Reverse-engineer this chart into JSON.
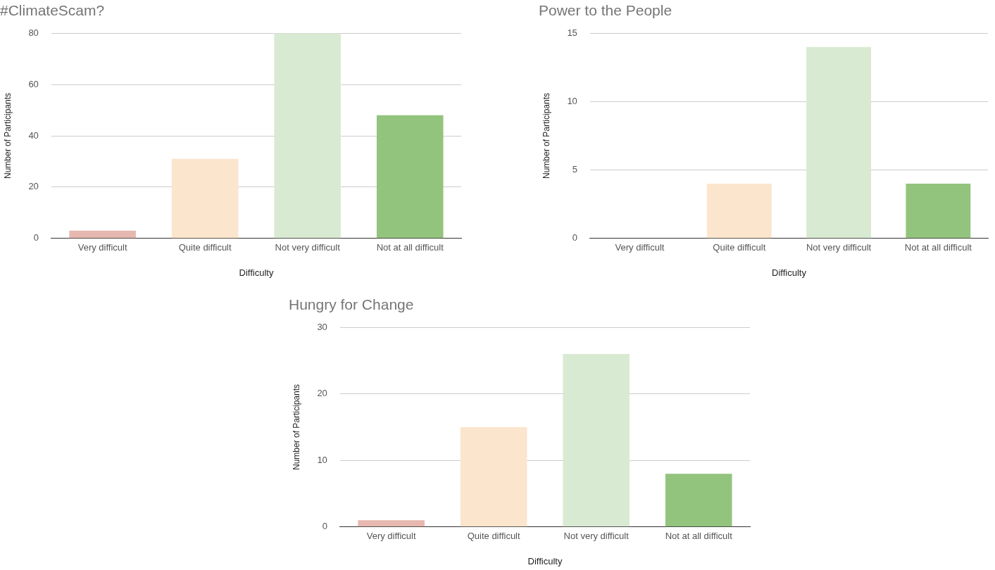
{
  "chart_data": [
    {
      "type": "bar",
      "title": "#ClimateScam?",
      "xlabel": "Difficulty",
      "ylabel": "Number of Participants",
      "categories": [
        "Very difficult",
        "Quite difficult",
        "Not very difficult",
        "Not at all difficult"
      ],
      "values": [
        3,
        31,
        80,
        48
      ],
      "colors": [
        "#e6b8af",
        "#fce5cd",
        "#d9ead3",
        "#93c47d"
      ],
      "ylim": [
        0,
        80
      ],
      "yticks": [
        0,
        20,
        40,
        60,
        80
      ],
      "grid": "y"
    },
    {
      "type": "bar",
      "title": "Power to the People",
      "xlabel": "Difficulty",
      "ylabel": "Number of Participants",
      "categories": [
        "Very difficult",
        "Quite difficult",
        "Not very difficult",
        "Not at all difficult"
      ],
      "values": [
        0,
        4,
        14,
        4
      ],
      "colors": [
        "#e6b8af",
        "#fce5cd",
        "#d9ead3",
        "#93c47d"
      ],
      "ylim": [
        0,
        15
      ],
      "yticks": [
        0,
        5,
        10,
        15
      ],
      "grid": "y"
    },
    {
      "type": "bar",
      "title": "Hungry for Change",
      "xlabel": "Difficulty",
      "ylabel": "Number of Participants",
      "categories": [
        "Very difficult",
        "Quite difficult",
        "Not very difficult",
        "Not at all difficult"
      ],
      "values": [
        1,
        15,
        26,
        8
      ],
      "colors": [
        "#e6b8af",
        "#fce5cd",
        "#d9ead3",
        "#93c47d"
      ],
      "ylim": [
        0,
        30
      ],
      "yticks": [
        0,
        10,
        20,
        30
      ],
      "grid": "y"
    }
  ]
}
